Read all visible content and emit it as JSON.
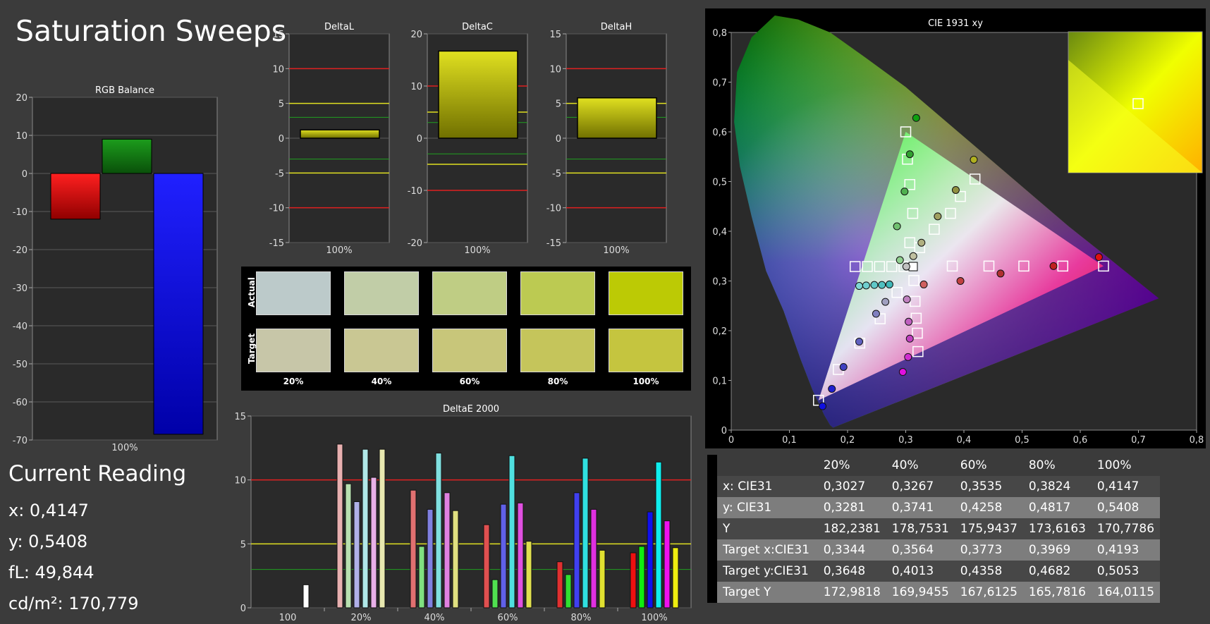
{
  "page_title": "Saturation Sweeps",
  "current_reading": {
    "title": "Current Reading",
    "x": "x: 0,4147",
    "y": "y: 0,5408",
    "fl": "fL: 49,844",
    "cdm2": "cd/m²: 170,779"
  },
  "swatches": {
    "actual_label": "Actual",
    "target_label": "Target",
    "steps": [
      "20%",
      "40%",
      "60%",
      "80%",
      "100%"
    ],
    "actual_colors": [
      "#bccaca",
      "#c1cda7",
      "#bfcd84",
      "#bcca52",
      "#bcca05"
    ],
    "target_colors": [
      "#c7c6a8",
      "#c9c793",
      "#c8c67a",
      "#c5c55b",
      "#c5c53f"
    ]
  },
  "table": {
    "headers": [
      "",
      "20%",
      "40%",
      "60%",
      "80%",
      "100%"
    ],
    "rows": [
      [
        "x: CIE31",
        "0,3027",
        "0,3267",
        "0,3535",
        "0,3824",
        "0,4147"
      ],
      [
        "y: CIE31",
        "0,3281",
        "0,3741",
        "0,4258",
        "0,4817",
        "0,5408"
      ],
      [
        "Y",
        "182,2381",
        "178,7531",
        "175,9437",
        "173,6163",
        "170,7786"
      ],
      [
        "Target x:CIE31",
        "0,3344",
        "0,3564",
        "0,3773",
        "0,3969",
        "0,4193"
      ],
      [
        "Target y:CIE31",
        "0,3648",
        "0,4013",
        "0,4358",
        "0,4682",
        "0,5053"
      ],
      [
        "Target Y",
        "172,9818",
        "169,9455",
        "167,6125",
        "165,7816",
        "164,0115"
      ]
    ]
  },
  "chart_data": [
    {
      "type": "bar",
      "title": "RGB Balance",
      "categories": [
        "100%"
      ],
      "series": [
        {
          "name": "Red",
          "color": "#ff0000",
          "values": [
            -12
          ]
        },
        {
          "name": "Green",
          "color": "#00aa00",
          "values": [
            9
          ]
        },
        {
          "name": "Blue",
          "color": "#0000ff",
          "values": [
            -68.5
          ]
        }
      ],
      "ylim": [
        -70,
        20
      ],
      "yticks": [
        -70,
        -60,
        -50,
        -40,
        -30,
        -20,
        -10,
        0,
        10,
        20
      ]
    },
    {
      "type": "bar",
      "title": "DeltaL",
      "categories": [
        "100%"
      ],
      "values": [
        1.2
      ],
      "ylim": [
        -15,
        15
      ],
      "yticks": [
        -15,
        -10,
        -5,
        0,
        5,
        10,
        15
      ],
      "red_lines": [
        10,
        -10
      ],
      "yellow_lines": [
        5,
        -5
      ],
      "green_lines": [
        3,
        -3
      ]
    },
    {
      "type": "bar",
      "title": "DeltaC",
      "categories": [
        "100%"
      ],
      "values": [
        16.7
      ],
      "ylim": [
        -20,
        20
      ],
      "yticks": [
        -20,
        -10,
        0,
        10,
        20
      ],
      "red_lines": [
        10,
        -10
      ],
      "yellow_lines": [
        5,
        -5
      ],
      "green_lines": [
        3,
        -3
      ]
    },
    {
      "type": "bar",
      "title": "DeltaH",
      "categories": [
        "100%"
      ],
      "values": [
        5.8
      ],
      "ylim": [
        -15,
        15
      ],
      "yticks": [
        -15,
        -10,
        -5,
        0,
        5,
        10,
        15
      ],
      "red_lines": [
        10,
        -10
      ],
      "yellow_lines": [
        5,
        -5
      ],
      "green_lines": [
        3,
        -3
      ]
    },
    {
      "type": "bar",
      "title": "DeltaE 2000",
      "categories": [
        "100",
        "20%",
        "40%",
        "60%",
        "80%",
        "100%"
      ],
      "groups": [
        {
          "label": "100",
          "values": [
            1.8
          ],
          "colors": [
            "#ffffff"
          ]
        },
        {
          "label": "20%",
          "values": [
            12.8,
            9.7,
            8.3,
            12.4,
            10.2,
            12.4
          ],
          "colors": [
            "#e8b0b0",
            "#b8e0b0",
            "#b0b0e8",
            "#b0e8e8",
            "#e8b0e8",
            "#e8e8b0"
          ]
        },
        {
          "label": "40%",
          "values": [
            9.2,
            4.8,
            7.7,
            12.1,
            9.0,
            7.6
          ],
          "colors": [
            "#e07070",
            "#80e080",
            "#8080e0",
            "#80e0e0",
            "#e080e0",
            "#e0e080"
          ]
        },
        {
          "label": "60%",
          "values": [
            6.5,
            2.2,
            8.1,
            11.9,
            8.2,
            5.2
          ],
          "colors": [
            "#e05050",
            "#50e050",
            "#6060e8",
            "#50e0e0",
            "#e050e0",
            "#e0e050"
          ]
        },
        {
          "label": "80%",
          "values": [
            3.6,
            2.6,
            9.0,
            11.7,
            7.7,
            4.5
          ],
          "colors": [
            "#e03030",
            "#30e030",
            "#4040f0",
            "#30e0e0",
            "#e030e0",
            "#e0e030"
          ]
        },
        {
          "label": "100%",
          "values": [
            4.3,
            4.8,
            7.5,
            11.4,
            6.8,
            4.7
          ],
          "colors": [
            "#ee1010",
            "#10ee10",
            "#1010ee",
            "#10eeee",
            "#ee10ee",
            "#eeee10"
          ]
        }
      ],
      "ylim": [
        0,
        15
      ],
      "yticks": [
        0,
        5,
        10,
        15
      ],
      "red_lines": [
        10
      ],
      "yellow_lines": [
        5
      ],
      "green_lines": [
        3
      ]
    },
    {
      "type": "scatter",
      "title": "CIE 1931 xy",
      "xlim": [
        0,
        0.8
      ],
      "ylim": [
        0,
        0.8
      ],
      "xticks": [
        "0",
        "0,1",
        "0,2",
        "0,3",
        "0,4",
        "0,5",
        "0,6",
        "0,7",
        "0,8"
      ],
      "yticks": [
        "0",
        "0,1",
        "0,2",
        "0,3",
        "0,4",
        "0,5",
        "0,6",
        "0,7",
        "0,8"
      ],
      "gamut": [
        [
          0.64,
          0.33
        ],
        [
          0.3,
          0.6
        ],
        [
          0.15,
          0.06
        ]
      ],
      "white": [
        0.3127,
        0.329
      ],
      "targets": [
        [
          0.213,
          0.329
        ],
        [
          0.234,
          0.329
        ],
        [
          0.255,
          0.329
        ],
        [
          0.276,
          0.329
        ],
        [
          0.297,
          0.329
        ],
        [
          0.38,
          0.33
        ],
        [
          0.443,
          0.33
        ],
        [
          0.503,
          0.33
        ],
        [
          0.57,
          0.33
        ],
        [
          0.64,
          0.33
        ],
        [
          0.307,
          0.377
        ],
        [
          0.312,
          0.436
        ],
        [
          0.307,
          0.494
        ],
        [
          0.303,
          0.545
        ],
        [
          0.3,
          0.6
        ],
        [
          0.324,
          0.367
        ],
        [
          0.349,
          0.404
        ],
        [
          0.377,
          0.436
        ],
        [
          0.394,
          0.47
        ],
        [
          0.419,
          0.505
        ],
        [
          0.285,
          0.277
        ],
        [
          0.256,
          0.224
        ],
        [
          0.221,
          0.175
        ],
        [
          0.184,
          0.122
        ],
        [
          0.15,
          0.06
        ],
        [
          0.314,
          0.301
        ],
        [
          0.316,
          0.259
        ],
        [
          0.318,
          0.225
        ],
        [
          0.32,
          0.195
        ],
        [
          0.321,
          0.158
        ]
      ],
      "measured": [
        {
          "x": 0.22,
          "y": 0.29,
          "c": "#7fd6d6"
        },
        {
          "x": 0.232,
          "y": 0.291,
          "c": "#70cfcf"
        },
        {
          "x": 0.246,
          "y": 0.292,
          "c": "#60c8c8"
        },
        {
          "x": 0.259,
          "y": 0.292,
          "c": "#50c0c0"
        },
        {
          "x": 0.272,
          "y": 0.293,
          "c": "#40b8b8"
        },
        {
          "x": 0.301,
          "y": 0.329,
          "c": "#c0c0c0"
        },
        {
          "x": 0.331,
          "y": 0.293,
          "c": "#d06060"
        },
        {
          "x": 0.394,
          "y": 0.3,
          "c": "#c04040"
        },
        {
          "x": 0.463,
          "y": 0.315,
          "c": "#b03030"
        },
        {
          "x": 0.554,
          "y": 0.33,
          "c": "#c02020"
        },
        {
          "x": 0.632,
          "y": 0.348,
          "c": "#e01010"
        },
        {
          "x": 0.29,
          "y": 0.342,
          "c": "#90d090"
        },
        {
          "x": 0.285,
          "y": 0.41,
          "c": "#70c070"
        },
        {
          "x": 0.298,
          "y": 0.48,
          "c": "#50b050"
        },
        {
          "x": 0.307,
          "y": 0.555,
          "c": "#30a030"
        },
        {
          "x": 0.318,
          "y": 0.628,
          "c": "#10a010"
        },
        {
          "x": 0.313,
          "y": 0.35,
          "c": "#c0c0a0"
        },
        {
          "x": 0.327,
          "y": 0.377,
          "c": "#b0b080"
        },
        {
          "x": 0.355,
          "y": 0.43,
          "c": "#a0a060"
        },
        {
          "x": 0.386,
          "y": 0.483,
          "c": "#909040"
        },
        {
          "x": 0.417,
          "y": 0.544,
          "c": "#b0b020"
        },
        {
          "x": 0.265,
          "y": 0.258,
          "c": "#a0a0c0"
        },
        {
          "x": 0.249,
          "y": 0.234,
          "c": "#8080c0"
        },
        {
          "x": 0.22,
          "y": 0.178,
          "c": "#6060c0"
        },
        {
          "x": 0.193,
          "y": 0.127,
          "c": "#4040c0"
        },
        {
          "x": 0.173,
          "y": 0.083,
          "c": "#2020d0"
        },
        {
          "x": 0.157,
          "y": 0.048,
          "c": "#1010e0"
        },
        {
          "x": 0.302,
          "y": 0.263,
          "c": "#c080c0"
        },
        {
          "x": 0.305,
          "y": 0.218,
          "c": "#c060c0"
        },
        {
          "x": 0.307,
          "y": 0.184,
          "c": "#c040c0"
        },
        {
          "x": 0.304,
          "y": 0.147,
          "c": "#d030d0"
        },
        {
          "x": 0.295,
          "y": 0.117,
          "c": "#e010e0"
        }
      ],
      "inset_point": [
        0.4147,
        0.5408
      ]
    }
  ]
}
